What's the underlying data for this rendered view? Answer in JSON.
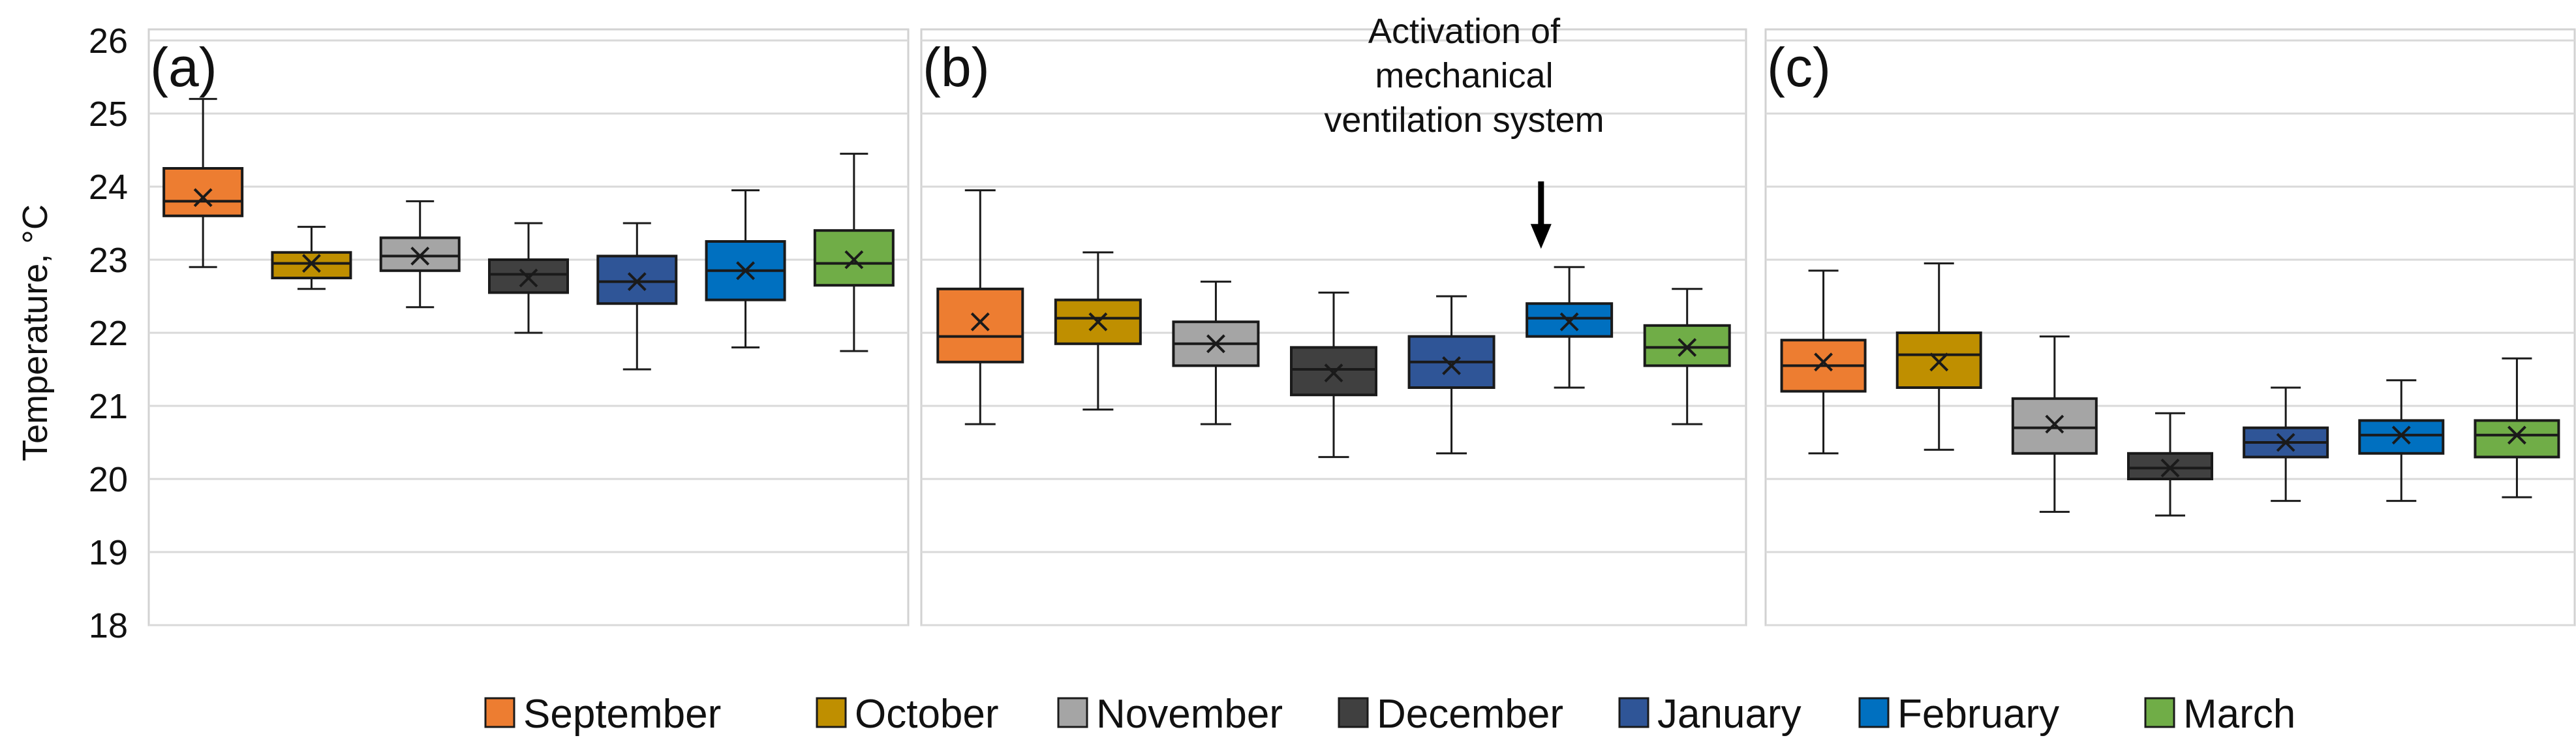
{
  "chart_data": {
    "type": "box",
    "ylabel": "Temperature, °C",
    "ylim": [
      18,
      26
    ],
    "yticks": [
      18,
      19,
      20,
      21,
      22,
      23,
      24,
      25,
      26
    ],
    "grid": true,
    "legend_position": "bottom",
    "categories": [
      "September",
      "October",
      "November",
      "December",
      "January",
      "February",
      "March"
    ],
    "colors": {
      "September": "#ed7d31",
      "October": "#bf8f00",
      "November": "#a5a5a5",
      "December": "#404040",
      "January": "#2f5597",
      "February": "#0070c0",
      "March": "#70ad47"
    },
    "panels": [
      {
        "label": "(a)",
        "series": [
          {
            "name": "September",
            "min": 22.9,
            "q1": 23.6,
            "median": 23.8,
            "q3": 24.25,
            "max": 25.2,
            "mean": 23.85
          },
          {
            "name": "October",
            "min": 22.6,
            "q1": 22.75,
            "median": 22.95,
            "q3": 23.1,
            "max": 23.45,
            "mean": 22.95
          },
          {
            "name": "November",
            "min": 22.35,
            "q1": 22.85,
            "median": 23.05,
            "q3": 23.3,
            "max": 23.8,
            "mean": 23.05
          },
          {
            "name": "December",
            "min": 22.0,
            "q1": 22.55,
            "median": 22.8,
            "q3": 23.0,
            "max": 23.5,
            "mean": 22.75
          },
          {
            "name": "January",
            "min": 21.5,
            "q1": 22.4,
            "median": 22.7,
            "q3": 23.05,
            "max": 23.5,
            "mean": 22.7
          },
          {
            "name": "February",
            "min": 21.8,
            "q1": 22.45,
            "median": 22.85,
            "q3": 23.25,
            "max": 23.95,
            "mean": 22.85
          },
          {
            "name": "March",
            "min": 21.75,
            "q1": 22.65,
            "median": 22.95,
            "q3": 23.4,
            "max": 24.45,
            "mean": 23.0
          }
        ]
      },
      {
        "label": "(b)",
        "annotation": {
          "lines": [
            "Activation of",
            "mechanical",
            "ventilation system"
          ],
          "points_to": "February"
        },
        "series": [
          {
            "name": "September",
            "min": 20.75,
            "q1": 21.6,
            "median": 21.95,
            "q3": 22.6,
            "max": 23.95,
            "mean": 22.15
          },
          {
            "name": "October",
            "min": 20.95,
            "q1": 21.85,
            "median": 22.2,
            "q3": 22.45,
            "max": 23.1,
            "mean": 22.15
          },
          {
            "name": "November",
            "min": 20.75,
            "q1": 21.55,
            "median": 21.85,
            "q3": 22.15,
            "max": 22.7,
            "mean": 21.85
          },
          {
            "name": "December",
            "min": 20.3,
            "q1": 21.15,
            "median": 21.5,
            "q3": 21.8,
            "max": 22.55,
            "mean": 21.45
          },
          {
            "name": "January",
            "min": 20.35,
            "q1": 21.25,
            "median": 21.6,
            "q3": 21.95,
            "max": 22.5,
            "mean": 21.55
          },
          {
            "name": "February",
            "min": 21.25,
            "q1": 21.95,
            "median": 22.2,
            "q3": 22.4,
            "max": 22.9,
            "mean": 22.15
          },
          {
            "name": "March",
            "min": 20.75,
            "q1": 21.55,
            "median": 21.8,
            "q3": 22.1,
            "max": 22.6,
            "mean": 21.8
          }
        ]
      },
      {
        "label": "(c)",
        "series": [
          {
            "name": "September",
            "min": 20.35,
            "q1": 21.2,
            "median": 21.55,
            "q3": 21.9,
            "max": 22.85,
            "mean": 21.6
          },
          {
            "name": "October",
            "min": 20.4,
            "q1": 21.25,
            "median": 21.7,
            "q3": 22.0,
            "max": 22.95,
            "mean": 21.6
          },
          {
            "name": "November",
            "min": 19.55,
            "q1": 20.35,
            "median": 20.7,
            "q3": 21.1,
            "max": 21.95,
            "mean": 20.75
          },
          {
            "name": "December",
            "min": 19.5,
            "q1": 20.0,
            "median": 20.15,
            "q3": 20.35,
            "max": 20.9,
            "mean": 20.15
          },
          {
            "name": "January",
            "min": 19.7,
            "q1": 20.3,
            "median": 20.5,
            "q3": 20.7,
            "max": 21.25,
            "mean": 20.5
          },
          {
            "name": "February",
            "min": 19.7,
            "q1": 20.35,
            "median": 20.6,
            "q3": 20.8,
            "max": 21.35,
            "mean": 20.6
          },
          {
            "name": "March",
            "min": 19.75,
            "q1": 20.3,
            "median": 20.6,
            "q3": 20.8,
            "max": 21.65,
            "mean": 20.6
          }
        ]
      }
    ]
  }
}
